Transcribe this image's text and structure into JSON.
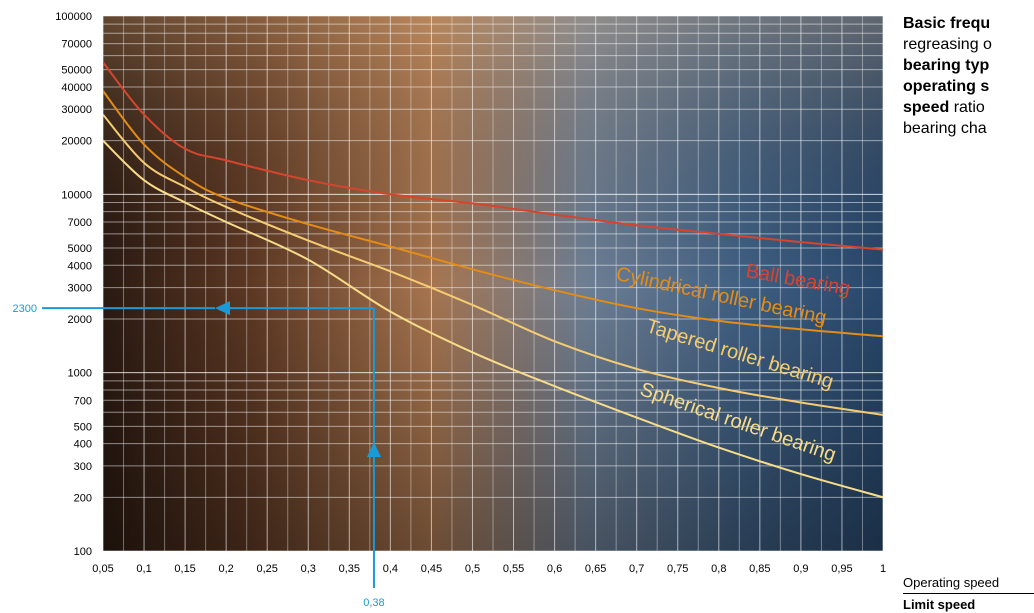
{
  "chart_data": {
    "type": "line",
    "xlim": [
      0.05,
      1
    ],
    "ylim": [
      100,
      100000
    ],
    "y_scale": "log",
    "grid": true,
    "x_tick_labels": [
      "0,05",
      "0,1",
      "0,15",
      "0,2",
      "0,25",
      "0,3",
      "0,35",
      "0,4",
      "0,45",
      "0,5",
      "0,55",
      "0,6",
      "0,65",
      "0,7",
      "0,75",
      "0,8",
      "0,85",
      "0,9",
      "0,95",
      "1"
    ],
    "y_ticks": [
      100,
      200,
      300,
      400,
      500,
      700,
      1000,
      2000,
      3000,
      4000,
      5000,
      7000,
      10000,
      20000,
      30000,
      40000,
      50000,
      70000,
      100000
    ],
    "y_tick_labels": [
      "100",
      "200",
      "300",
      "400",
      "500",
      "700",
      "1000",
      "2000",
      "3000",
      "4000",
      "5000",
      "7000",
      "10000",
      "20000",
      "30000",
      "40000",
      "50000",
      "70000",
      "100000"
    ],
    "series": [
      {
        "name": "Ball bearing",
        "color": "#d5452e",
        "x": [
          0.05,
          0.1,
          0.15,
          0.2,
          0.3,
          0.4,
          0.5,
          0.6,
          0.7,
          0.8,
          0.9,
          1.0
        ],
        "y": [
          55000,
          28000,
          18000,
          15500,
          12000,
          10000,
          8900,
          7700,
          6700,
          6000,
          5400,
          4900
        ]
      },
      {
        "name": "Cylindrical roller bearing",
        "color": "#e38c17",
        "x": [
          0.05,
          0.1,
          0.15,
          0.2,
          0.3,
          0.4,
          0.5,
          0.6,
          0.7,
          0.8,
          0.9,
          1.0
        ],
        "y": [
          38000,
          19000,
          12500,
          9500,
          6800,
          5100,
          3800,
          2900,
          2300,
          1950,
          1750,
          1600
        ]
      },
      {
        "name": "Tapered roller bearing",
        "color": "#f6cc73",
        "x": [
          0.05,
          0.1,
          0.15,
          0.2,
          0.3,
          0.4,
          0.5,
          0.6,
          0.7,
          0.8,
          0.9,
          1.0
        ],
        "y": [
          28000,
          15000,
          11000,
          8500,
          5500,
          3700,
          2400,
          1500,
          1050,
          820,
          680,
          580
        ]
      },
      {
        "name": "Spherical roller bearing",
        "color": "#f8dc8a",
        "x": [
          0.05,
          0.1,
          0.15,
          0.2,
          0.3,
          0.4,
          0.5,
          0.6,
          0.7,
          0.8,
          0.9,
          1.0
        ],
        "y": [
          20000,
          12000,
          9000,
          7000,
          4300,
          2200,
          1300,
          840,
          560,
          380,
          270,
          200
        ]
      }
    ],
    "annotation": {
      "x": 0.38,
      "y": 2300,
      "x_label": "0,38",
      "y_label": "2300",
      "color": "#1a9ad6"
    }
  },
  "description": {
    "lines": [
      [
        {
          "t": "Basic frequ",
          "b": true
        }
      ],
      [
        {
          "t": "regreasing o",
          "b": false
        }
      ],
      [
        {
          "t": "bearing typ",
          "b": true
        }
      ],
      [
        {
          "t": "operating s",
          "b": true
        }
      ],
      [
        {
          "t": "speed",
          "b": true
        },
        {
          "t": " ratio",
          "b": false
        }
      ],
      [
        {
          "t": "bearing cha",
          "b": false
        }
      ]
    ]
  },
  "ratio": {
    "numerator": "Operating speed",
    "denominator": "Limit speed"
  }
}
